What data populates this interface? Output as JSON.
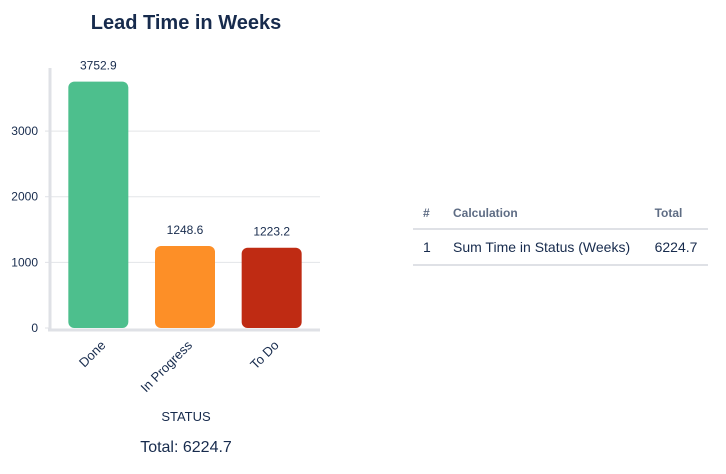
{
  "chart_data": {
    "type": "bar",
    "title": "Lead Time in Weeks",
    "xlabel": "STATUS",
    "ylabel": "",
    "categories": [
      "Done",
      "In Progress",
      "To Do"
    ],
    "values": [
      3752.9,
      1248.6,
      1223.2
    ],
    "value_labels": [
      "3752.9",
      "1248.6",
      "1223.2"
    ],
    "colors": [
      "#4dbf8d",
      "#fd8f27",
      "#bf2b13"
    ],
    "yticks": [
      0,
      1000,
      2000,
      3000
    ],
    "ylim": [
      0,
      3900
    ],
    "grid": true,
    "legend": "none"
  },
  "summary": {
    "total_text": "Total: 6224.7"
  },
  "table": {
    "headers": [
      "#",
      "Calculation",
      "Total"
    ],
    "rows": [
      {
        "index": "1",
        "calculation": "Sum Time in Status (Weeks)",
        "total": "6224.7"
      }
    ]
  }
}
